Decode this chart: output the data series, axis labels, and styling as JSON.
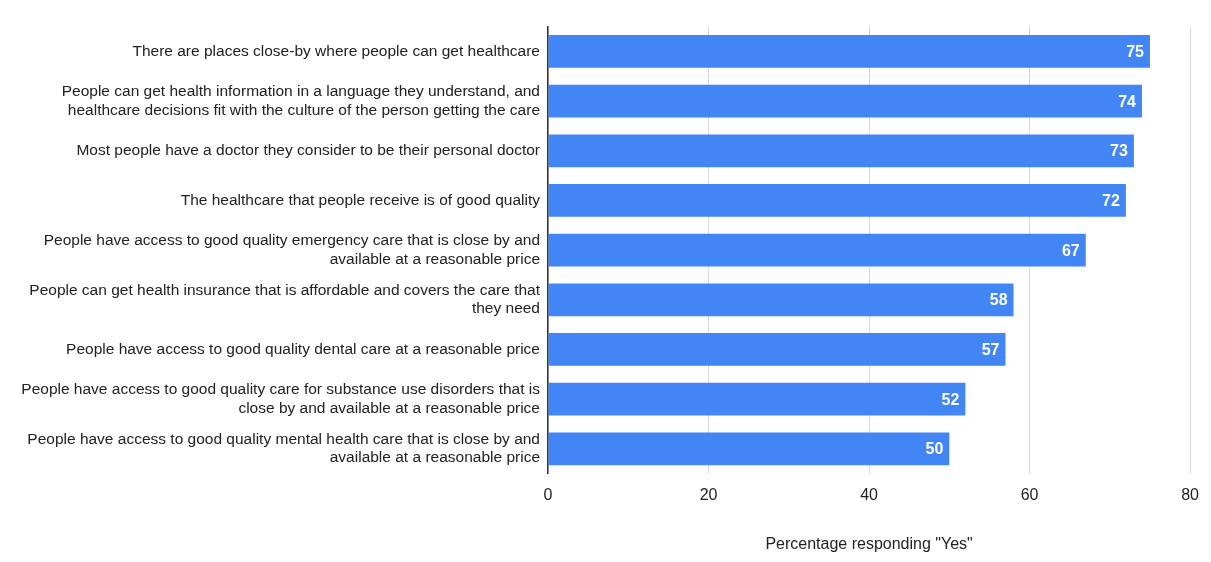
{
  "chart_data": {
    "type": "bar",
    "orientation": "horizontal",
    "categories": [
      "There are places close-by where people can get healthcare",
      "People can get health information in a language they understand, and healthcare decisions fit with the culture of the person getting the care",
      "Most people have a doctor they consider to be their personal doctor",
      "The healthcare that people receive is of good quality",
      "People have access to good quality emergency care that is close by and available at a reasonable price",
      "People can get health insurance that is affordable and covers the care that they need",
      "People have access to good quality dental care at a reasonable price",
      "People have access to good quality care for substance use disorders that is close by and available at a reasonable price",
      "People have access to good quality mental health care that is close by and available at a reasonable price"
    ],
    "values": [
      75,
      74,
      73,
      72,
      67,
      58,
      57,
      52,
      50
    ],
    "color": "#4285f4",
    "xlim": [
      0,
      80
    ],
    "xticks": [
      0,
      20,
      40,
      60,
      80
    ],
    "xlabel": "Percentage responding \"Yes\"",
    "grid": "x",
    "data_labels": true
  }
}
